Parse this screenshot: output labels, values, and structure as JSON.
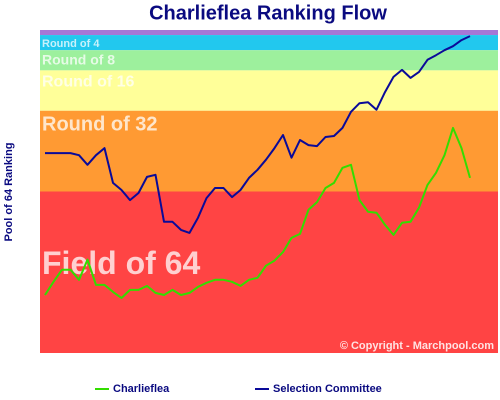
{
  "chart_data": {
    "type": "line",
    "title": "Charlieflea Ranking Flow",
    "y_label": "Pool of 64 Ranking",
    "annotation": "© Copyright - Marchpool.com",
    "ylim": [
      64,
      0
    ],
    "bands": [
      {
        "from": 0,
        "to": 1,
        "color": "#a577d6"
      },
      {
        "label": "Round of 4",
        "from": 1,
        "to": 4,
        "color": "#22c8ee"
      },
      {
        "label": "Round of 8",
        "from": 4,
        "to": 8,
        "color": "#9df09d"
      },
      {
        "label": "Round of 16",
        "from": 8,
        "to": 16,
        "color": "#ffff99"
      },
      {
        "label": "Round of 32",
        "from": 16,
        "to": 32,
        "color": "#ff9a33"
      },
      {
        "label": "Field of 64",
        "from": 32,
        "to": 64,
        "color": "#ff4444"
      }
    ],
    "series": [
      {
        "name": "Charlieflea",
        "color": "#33dd00",
        "values": [
          52.5,
          49.9,
          47.5,
          47.5,
          49.5,
          45.5,
          50.5,
          50.5,
          51.9,
          53.1,
          51.5,
          51.5,
          50.7,
          52.1,
          52.5,
          51.5,
          52.5,
          52.1,
          50.9,
          50.1,
          49.5,
          49.5,
          49.9,
          50.7,
          49.5,
          49.1,
          46.7,
          45.7,
          44,
          41.2,
          40.4,
          35.6,
          34.1,
          31.3,
          30.3,
          27.3,
          26.7,
          33.7,
          36,
          36.2,
          38.6,
          40.6,
          38.2,
          38,
          35.2,
          30.7,
          28.3,
          24.8,
          19.4,
          23.4,
          29.3
        ]
      },
      {
        "name": "Selection Committee",
        "color": "#0a0a99",
        "values": [
          24.4,
          24.4,
          24.4,
          24.4,
          24.8,
          26.7,
          24.8,
          23.4,
          30.3,
          31.7,
          33.7,
          32.3,
          29.1,
          28.7,
          38,
          38,
          39.6,
          40.2,
          37.2,
          33.3,
          31.3,
          31.3,
          33.1,
          31.7,
          29.3,
          27.7,
          25.7,
          23.4,
          20.8,
          25.3,
          21.8,
          22.8,
          23,
          21.2,
          21,
          19.4,
          16.2,
          14.5,
          14.3,
          15.8,
          12.3,
          9.3,
          7.9,
          9.5,
          8.3,
          5.9,
          5,
          4,
          3.2,
          2,
          1.2
        ]
      }
    ]
  }
}
